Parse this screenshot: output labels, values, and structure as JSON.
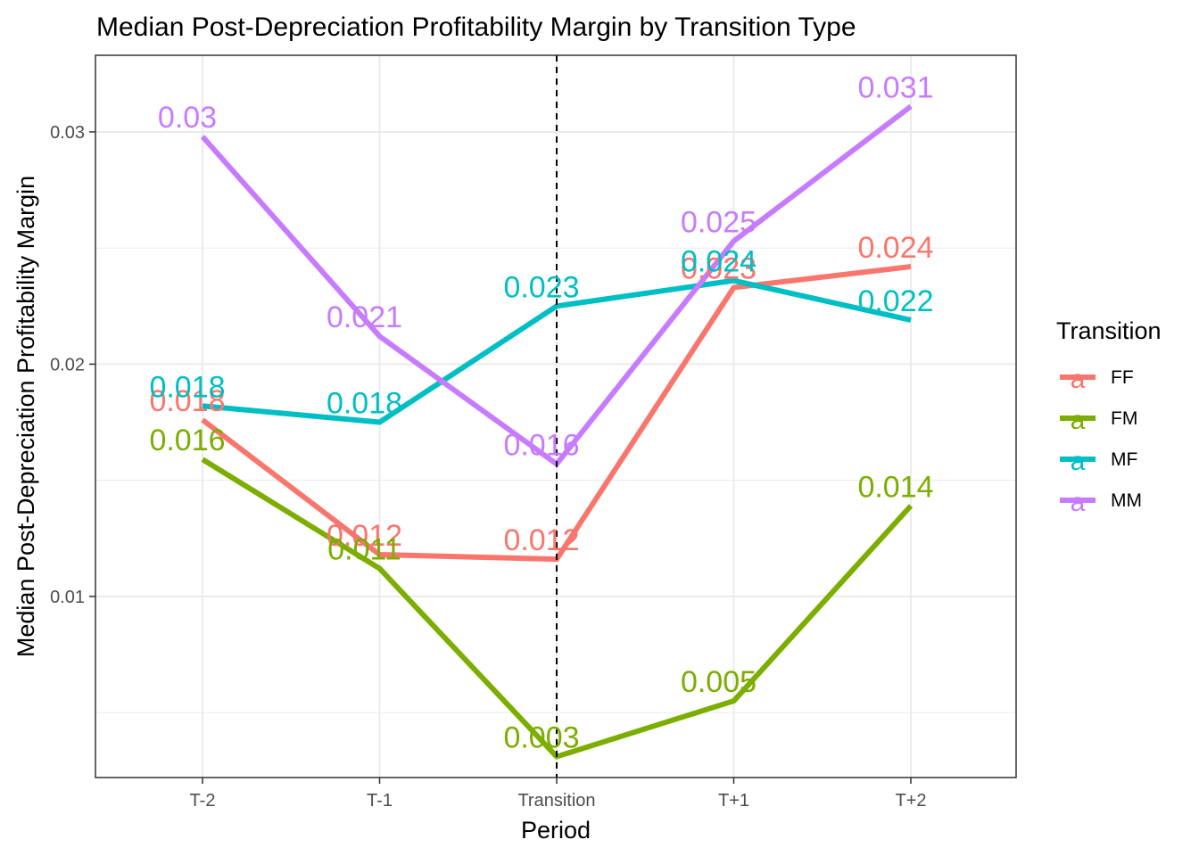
{
  "chart_data": {
    "type": "line",
    "title": "Median Post-Depreciation Profitability Margin by Transition Type",
    "xlabel": "Period",
    "ylabel": "Median Post-Depreciation Profitability Margin",
    "categories": [
      "T-2",
      "T-1",
      "Transition",
      "T+1",
      "T+2"
    ],
    "ylim": [
      0.0022,
      0.0333
    ],
    "yticks": [
      0.01,
      0.02,
      0.03
    ],
    "ytick_labels": [
      "0.01",
      "0.02",
      "0.03"
    ],
    "grid": true,
    "vline_at": "Transition",
    "legend": {
      "title": "Transition",
      "position": "right"
    },
    "series": [
      {
        "name": "FF",
        "color": "#F8766D",
        "values": [
          0.0176,
          0.0118,
          0.0116,
          0.0233,
          0.0242
        ],
        "labels": [
          "0.018",
          "0.012",
          "0.012",
          "0.023",
          "0.024"
        ]
      },
      {
        "name": "FM",
        "color": "#7CAE00",
        "values": [
          0.0159,
          0.0112,
          0.0031,
          0.0055,
          0.0139
        ],
        "labels": [
          "0.016",
          "0.011",
          "0.003",
          "0.005",
          "0.014"
        ]
      },
      {
        "name": "MF",
        "color": "#00BFC4",
        "values": [
          0.0182,
          0.0175,
          0.0225,
          0.0236,
          0.0219
        ],
        "labels": [
          "0.018",
          "0.018",
          "0.023",
          "0.024",
          "0.022"
        ]
      },
      {
        "name": "MM",
        "color": "#C77CFF",
        "values": [
          0.0298,
          0.0212,
          0.0157,
          0.0253,
          0.0311
        ],
        "labels": [
          "0.03",
          "0.021",
          "0.016",
          "0.025",
          "0.031"
        ]
      }
    ]
  }
}
